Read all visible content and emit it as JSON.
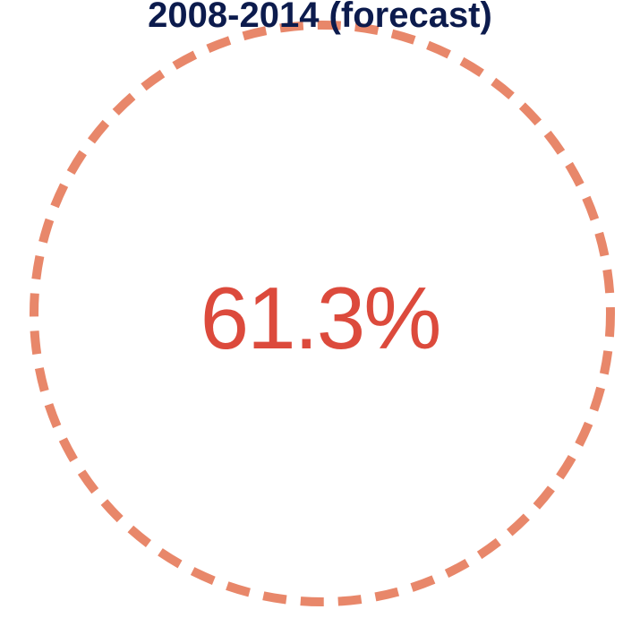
{
  "chart_data": {
    "type": "pie",
    "title": "2008-2014 (forecast)",
    "values": [
      61.3
    ],
    "value_label": "61.3%",
    "style": "dashed ring around a centered percentage",
    "colors": {
      "ring": "#e8876a",
      "value_text": "#dc4a3c",
      "title_text": "#0c1b4d"
    }
  }
}
